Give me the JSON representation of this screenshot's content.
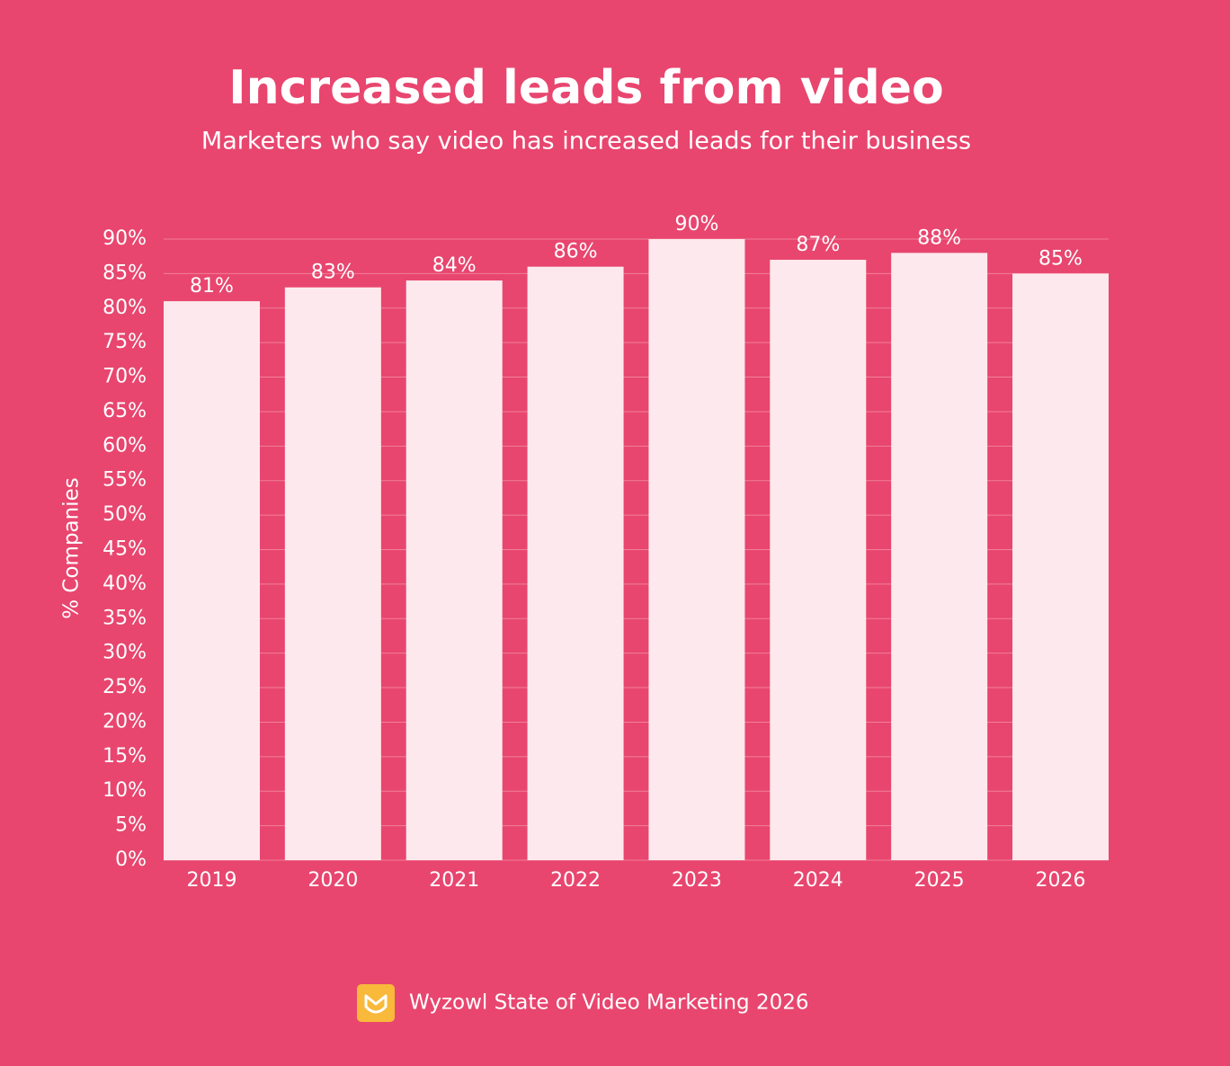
{
  "chart_data": {
    "type": "bar",
    "title": "Increased leads from video",
    "subtitle": "Marketers who say video has increased leads for their business",
    "y_label": "% Companies",
    "categories": [
      "2019",
      "2020",
      "2021",
      "2022",
      "2023",
      "2024",
      "2025",
      "2026"
    ],
    "values": [
      81,
      83,
      84,
      86,
      90,
      87,
      88,
      85
    ],
    "value_labels": [
      "81%",
      "83%",
      "84%",
      "86%",
      "90%",
      "87%",
      "88%",
      "85%"
    ],
    "color": "#fde9ed",
    "ylim": [
      0,
      90
    ],
    "yticks": [
      {
        "value": 0,
        "label": "0%"
      },
      {
        "value": 5,
        "label": "5%"
      },
      {
        "value": 10,
        "label": "10%"
      },
      {
        "value": 15,
        "label": "15%"
      },
      {
        "value": 20,
        "label": "20%"
      },
      {
        "value": 25,
        "label": "25%"
      },
      {
        "value": 30,
        "label": "30%"
      },
      {
        "value": 35,
        "label": "35%"
      },
      {
        "value": 40,
        "label": "40%"
      },
      {
        "value": 45,
        "label": "45%"
      },
      {
        "value": 50,
        "label": "50%"
      },
      {
        "value": 55,
        "label": "55%"
      },
      {
        "value": 60,
        "label": "60%"
      },
      {
        "value": 65,
        "label": "65%"
      },
      {
        "value": 70,
        "label": "70%"
      },
      {
        "value": 75,
        "label": "75%"
      },
      {
        "value": 80,
        "label": "80%"
      },
      {
        "value": 85,
        "label": "85%"
      },
      {
        "value": 90,
        "label": "90%"
      }
    ],
    "grid": true,
    "source": "Wyzowl State of Video Marketing 2026"
  }
}
